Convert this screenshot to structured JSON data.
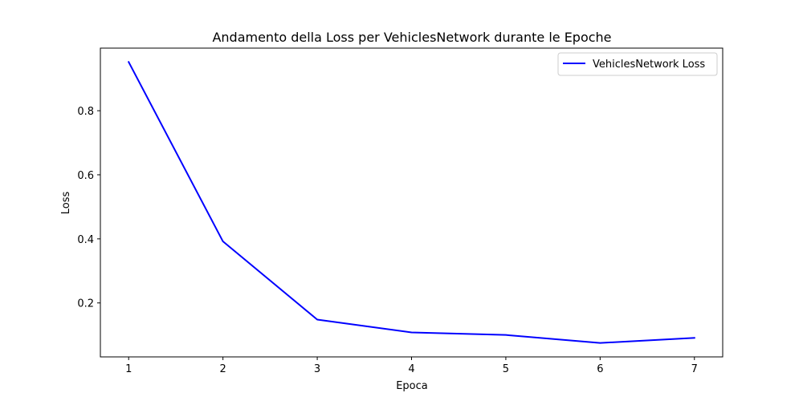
{
  "chart_data": {
    "type": "line",
    "title": "Andamento della Loss per VehiclesNetwork durante le Epoche",
    "xlabel": "Epoca",
    "ylabel": "Loss",
    "x": [
      1,
      2,
      3,
      4,
      5,
      6,
      7
    ],
    "series": [
      {
        "name": "VehiclesNetwork Loss",
        "color": "#0000ff",
        "values": [
          0.952,
          0.392,
          0.148,
          0.108,
          0.1,
          0.075,
          0.091
        ]
      }
    ],
    "xlim": [
      0.7,
      7.3
    ],
    "ylim": [
      0.0316,
      0.9954
    ],
    "xticks": [
      1,
      2,
      3,
      4,
      5,
      6,
      7
    ],
    "xtick_labels": [
      "1",
      "2",
      "3",
      "4",
      "5",
      "6",
      "7"
    ],
    "yticks": [
      0.2,
      0.4,
      0.6,
      0.8
    ],
    "ytick_labels": [
      "0.2",
      "0.4",
      "0.6",
      "0.8"
    ],
    "grid": false,
    "legend_position": "top-right"
  }
}
